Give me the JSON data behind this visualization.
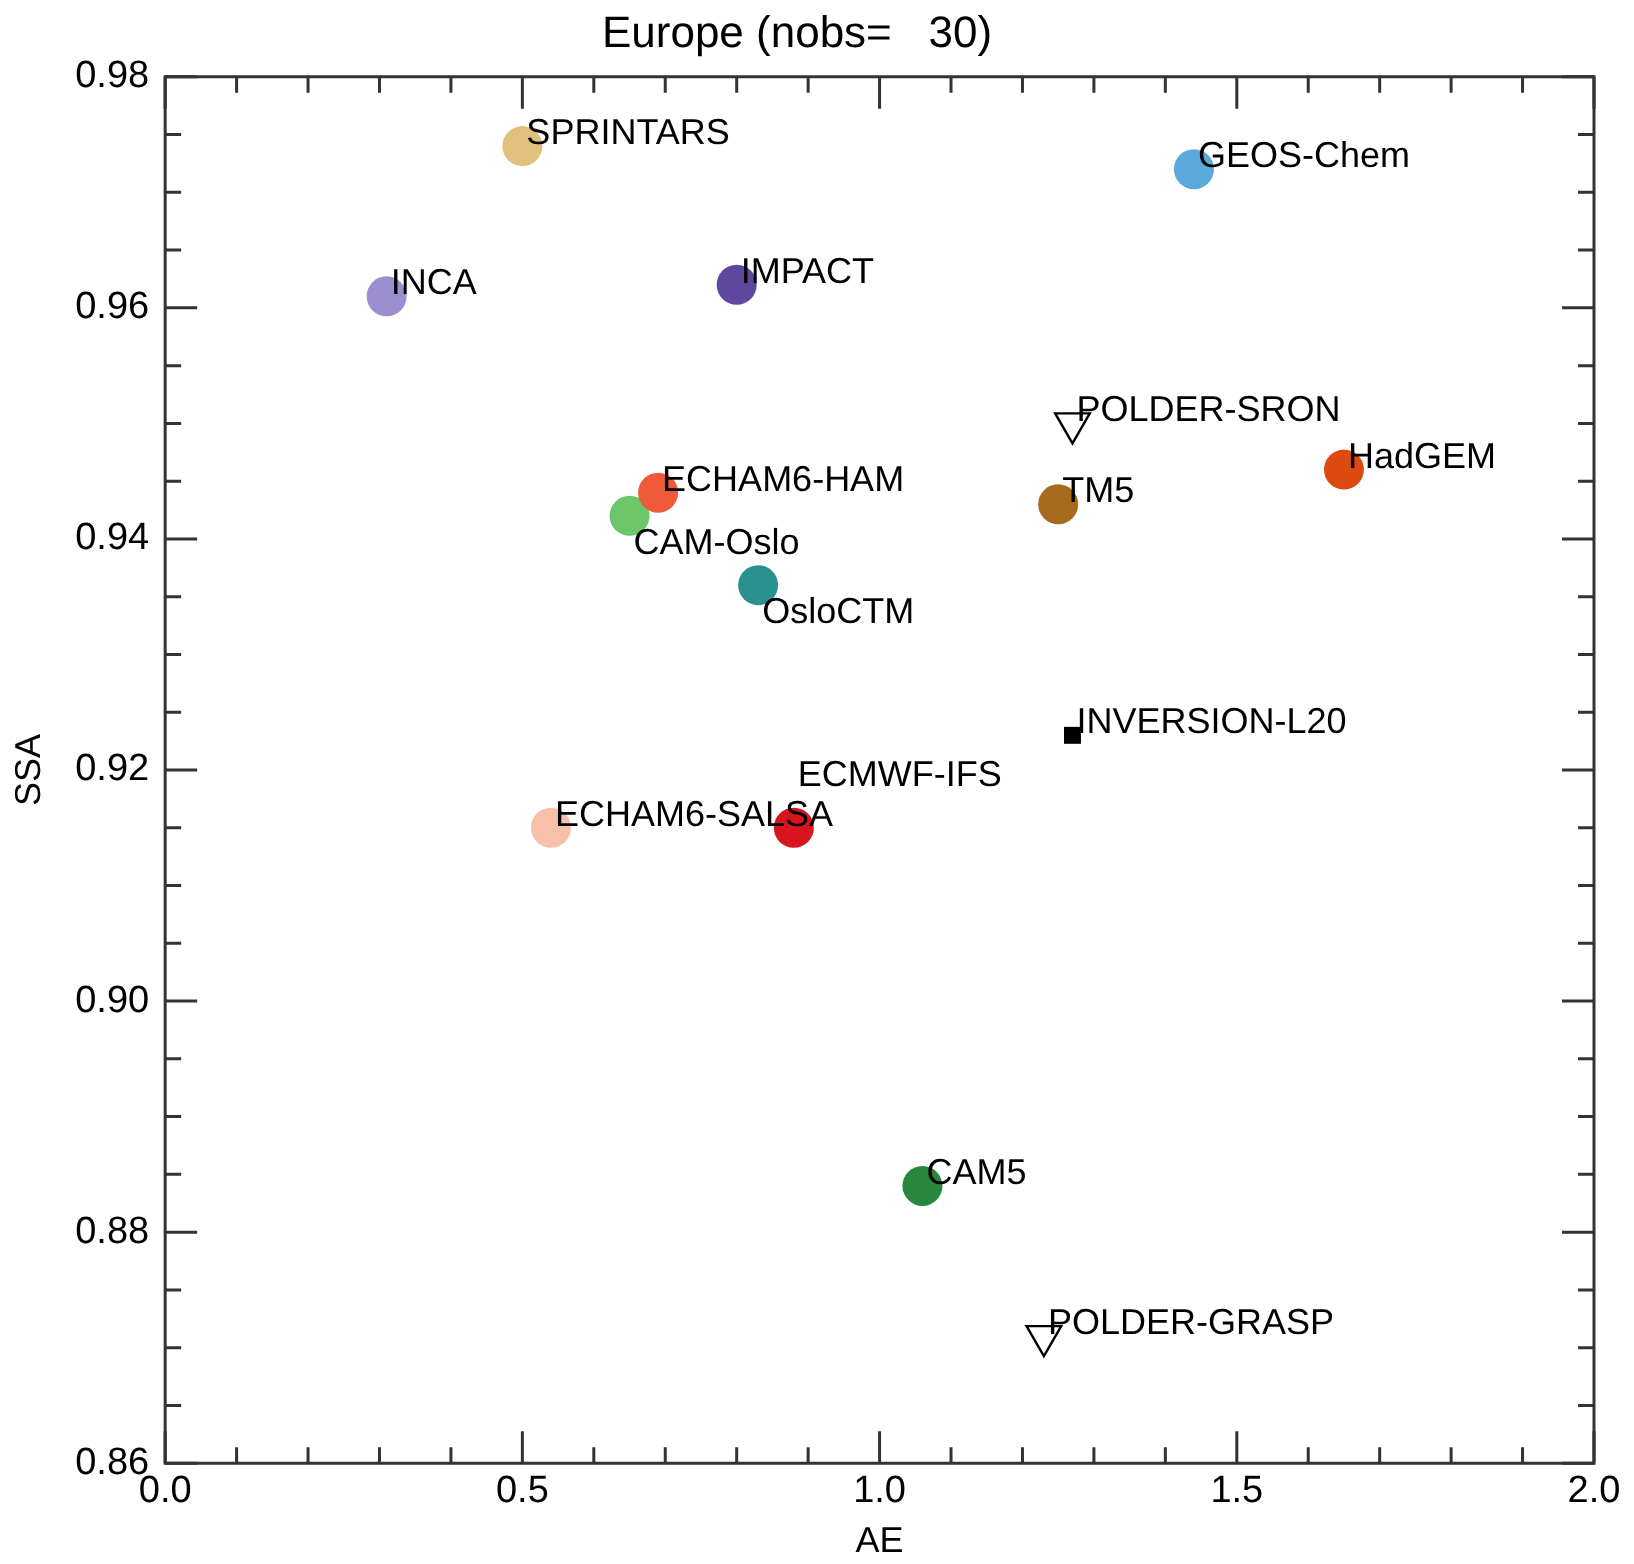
{
  "chart_data": {
    "type": "scatter",
    "title": "Europe (nobs=   30)",
    "xlabel": "AE",
    "ylabel": "SSA",
    "xlim": [
      0,
      2
    ],
    "ylim": [
      0.86,
      0.98
    ],
    "xticks": [
      {
        "value": 0,
        "label": "0.0"
      },
      {
        "value": 0.1,
        "label": null
      },
      {
        "value": 0.2,
        "label": null
      },
      {
        "value": 0.3,
        "label": null
      },
      {
        "value": 0.4,
        "label": null
      },
      {
        "value": 0.5,
        "label": "0.5"
      },
      {
        "value": 0.6,
        "label": null
      },
      {
        "value": 0.7,
        "label": null
      },
      {
        "value": 0.8,
        "label": null
      },
      {
        "value": 0.9,
        "label": null
      },
      {
        "value": 1,
        "label": "1.0"
      },
      {
        "value": 1.1,
        "label": null
      },
      {
        "value": 1.2,
        "label": null
      },
      {
        "value": 1.3,
        "label": null
      },
      {
        "value": 1.4,
        "label": null
      },
      {
        "value": 1.5,
        "label": "1.5"
      },
      {
        "value": 1.6,
        "label": null
      },
      {
        "value": 1.7,
        "label": null
      },
      {
        "value": 1.8,
        "label": null
      },
      {
        "value": 1.9,
        "label": null
      },
      {
        "value": 2,
        "label": "2.0"
      }
    ],
    "yticks": [
      0.86,
      {
        "value": 0.865,
        "label": null
      },
      {
        "value": 0.87,
        "label": null
      },
      {
        "value": 0.875,
        "label": null
      },
      0.88,
      {
        "value": 0.885,
        "label": null
      },
      {
        "value": 0.89,
        "label": null
      },
      {
        "value": 0.895,
        "label": null
      },
      {
        "value": 0.9,
        "label": "0.90"
      },
      {
        "value": 0.905,
        "label": null
      },
      {
        "value": 0.91,
        "label": null
      },
      {
        "value": 0.915,
        "label": null
      },
      0.92,
      {
        "value": 0.925,
        "label": null
      },
      {
        "value": 0.93,
        "label": null
      },
      {
        "value": 0.935,
        "label": null
      },
      0.94,
      {
        "value": 0.945,
        "label": null
      },
      {
        "value": 0.95,
        "label": null
      },
      {
        "value": 0.955,
        "label": null
      },
      0.96,
      {
        "value": 0.965,
        "label": null
      },
      {
        "value": 0.97,
        "label": null
      },
      {
        "value": 0.975,
        "label": null
      },
      0.98
    ],
    "grid": false,
    "legend": false,
    "series": [
      {
        "name": "SPRINTARS",
        "color": "#e0c07a",
        "marker": "circle",
        "x": [
          0.5
        ],
        "values": [
          0.974
        ]
      },
      {
        "name": "GEOS-Chem",
        "color": "#5aa8dc",
        "marker": "circle",
        "x": [
          1.44
        ],
        "values": [
          0.972
        ]
      },
      {
        "name": "INCA",
        "color": "#9b8fd0",
        "marker": "circle",
        "x": [
          0.31
        ],
        "values": [
          0.961
        ]
      },
      {
        "name": "IMPACT",
        "color": "#5e479e",
        "marker": "circle",
        "x": [
          0.8
        ],
        "values": [
          0.962
        ]
      },
      {
        "name": "POLDER-SRON",
        "color": "#000000",
        "marker": "triangle",
        "x": [
          1.27
        ],
        "values": [
          0.95
        ]
      },
      {
        "name": "HadGEM",
        "color": "#dd4a10",
        "marker": "circle",
        "x": [
          1.65
        ],
        "values": [
          0.946
        ]
      },
      {
        "name": "TM5",
        "color": "#a66a1f",
        "marker": "circle",
        "x": [
          1.25
        ],
        "values": [
          0.943
        ]
      },
      {
        "name": "ECHAM6-HAM",
        "color": "#ee5a3a",
        "marker": "circle",
        "x": [
          0.69
        ],
        "values": [
          0.944
        ]
      },
      {
        "name": "CAM-Oslo",
        "color": "#6cc66a",
        "marker": "circle",
        "x": [
          0.65
        ],
        "values": [
          0.942
        ]
      },
      {
        "name": "OsloCTM",
        "color": "#2a9090",
        "marker": "circle",
        "x": [
          0.83
        ],
        "values": [
          0.936
        ]
      },
      {
        "name": "INVERSION-L20",
        "color": "#000000",
        "marker": "square",
        "x": [
          1.27
        ],
        "values": [
          0.923
        ]
      },
      {
        "name": "ECHAM6-SALSA",
        "color": "#f7c0a8",
        "marker": "circle",
        "x": [
          0.54
        ],
        "values": [
          0.915
        ]
      },
      {
        "name": "ECMWF-IFS",
        "color": "#d8141e",
        "marker": "circle",
        "x": [
          0.88
        ],
        "values": [
          0.915
        ]
      },
      {
        "name": "CAM5",
        "color": "#27883d",
        "marker": "circle",
        "x": [
          1.06
        ],
        "values": [
          0.884
        ]
      },
      {
        "name": "POLDER-GRASP",
        "color": "#000000",
        "marker": "triangle",
        "x": [
          1.23
        ],
        "values": [
          0.871
        ]
      }
    ]
  }
}
